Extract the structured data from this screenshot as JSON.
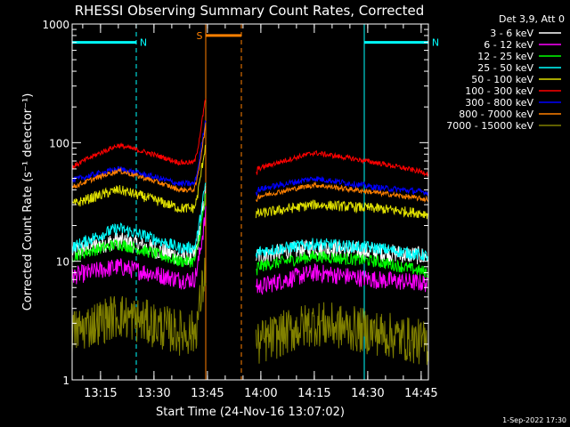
{
  "chart_data": {
    "type": "line",
    "title": "RHESSI Observing Summary Count Rates, Corrected",
    "xlabel": "Start Time (24-Nov-16 13:07:02)",
    "ylabel": "Corrected Count Rate (s⁻¹ detector⁻¹)",
    "yscale": "log",
    "ylim": [
      1,
      1000
    ],
    "xlim_minutes_after_start": [
      0,
      100
    ],
    "x_tick_labels": [
      "13:15",
      "13:30",
      "13:45",
      "14:00",
      "14:15",
      "14:30",
      "14:45"
    ],
    "x_tick_minutes": [
      7.97,
      22.97,
      37.97,
      52.97,
      67.97,
      82.97,
      97.97
    ],
    "y_tick_labels": [
      "1",
      "10",
      "100",
      "1000"
    ],
    "y_tick_values": [
      1,
      10,
      100,
      1000
    ],
    "legend_header": "Det 3,9, Att 0",
    "legend_placement": "right",
    "data_gap_minutes": [
      37.5,
      51.5
    ],
    "series": [
      {
        "name": "3 - 6 keV",
        "color": "#ffffff",
        "base": [
          12,
          15,
          11,
          11,
          13,
          12,
          11
        ],
        "noise": 0.18
      },
      {
        "name": "6 - 12 keV",
        "color": "#ff00ff",
        "base": [
          7.5,
          9,
          7,
          6,
          8,
          7,
          6.5
        ],
        "noise": 0.18
      },
      {
        "name": "12 - 25 keV",
        "color": "#00ff00",
        "base": [
          11,
          14,
          10,
          9,
          11,
          10,
          8
        ],
        "noise": 0.12
      },
      {
        "name": "25 - 50 keV",
        "color": "#00ffff",
        "base": [
          13,
          19,
          13,
          12,
          14,
          13,
          11
        ],
        "noise": 0.12
      },
      {
        "name": "50 - 100 keV",
        "color": "#e0e000",
        "base": [
          30,
          40,
          28,
          25,
          30,
          28,
          25
        ],
        "noise": 0.1
      },
      {
        "name": "100 - 300 keV",
        "color": "#ff0000",
        "base": [
          62,
          95,
          68,
          60,
          82,
          68,
          55
        ],
        "noise": 0.05
      },
      {
        "name": "300 - 800 keV",
        "color": "#0000ff",
        "base": [
          48,
          60,
          45,
          40,
          50,
          42,
          38
        ],
        "noise": 0.06
      },
      {
        "name": "800 - 7000 keV",
        "color": "#ff8000",
        "base": [
          42,
          58,
          40,
          35,
          44,
          38,
          33
        ],
        "noise": 0.05
      },
      {
        "name": "7000 - 15000 keV",
        "color": "#808000",
        "base": [
          2.5,
          3.5,
          2.5,
          2,
          3,
          2.5,
          2
        ],
        "noise": 0.45
      }
    ],
    "annotations": [
      {
        "label": "N",
        "color": "#00ffff",
        "segment_minutes": [
          0,
          18
        ],
        "level": 700
      },
      {
        "label": "N",
        "color": "#00ffff",
        "segment_minutes": [
          82,
          100
        ],
        "level": 700
      },
      {
        "label": "S",
        "color": "#ff8000",
        "segment_minutes": [
          37.5,
          47.5
        ],
        "level": 800
      }
    ]
  },
  "footer": {
    "date": "1-Sep-2022 17:30"
  }
}
